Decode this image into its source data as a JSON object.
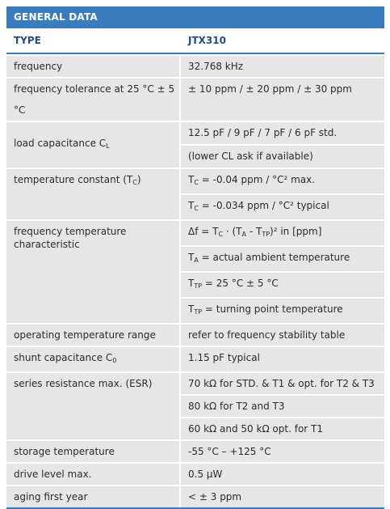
{
  "title": "GENERAL DATA",
  "header": {
    "label": "TYPE",
    "value": "JTX310"
  },
  "rows": {
    "frequency": {
      "label": "frequency",
      "value": "32.768 kHz"
    },
    "tolerance": {
      "label": "frequency tolerance at 25 °C ± 5 °C",
      "value": "± 10 ppm / ± 20 ppm / ± 30 ppm"
    },
    "load": {
      "label": "load capacitance C",
      "label_sub": "L",
      "value1": "12.5 pF / 9 pF / 7 pF / 6 pF std.",
      "value2": "(lower CL ask if available)"
    },
    "tempconst": {
      "label": "temperature constant (T",
      "label_sub": "C",
      "label_end": ")",
      "v1_pre": "T",
      "v1_sub": "C",
      "v1_post": "= -0.04 ppm / °C² max.",
      "v2_pre": "T",
      "v2_sub": "C",
      "v2_post": "= -0.034 ppm / °C² typical"
    },
    "tempchar": {
      "label": "frequency temperature characteristic",
      "v1": "Δf = T",
      "v1_sub1": "C",
      "v1_mid": "· (T",
      "v1_sub2": "A",
      "v1_mid2": "- T",
      "v1_sub3": "TP",
      "v1_end": ")² in [ppm]",
      "v2_pre": "T",
      "v2_sub": "A",
      "v2_post": "= actual ambient temperature",
      "v3_pre": "T",
      "v3_sub": "TP",
      "v3_post": "= 25 °C ± 5 °C",
      "v4_pre": "T",
      "v4_sub": "TP",
      "v4_post": "= turning point temperature"
    },
    "optemp": {
      "label": "operating temperature range",
      "value": "refer to frequency stability table"
    },
    "shunt": {
      "label": "shunt capacitance C",
      "label_sub": "0",
      "value": "1.15 pF typical"
    },
    "esr": {
      "label": "series resistance max. (ESR)",
      "value1": "70 kΩ for STD. & T1 & opt. for T2 & T3",
      "value2": "80 kΩ for T2 and T3",
      "value3": "60 kΩ and 50 kΩ opt. for T1"
    },
    "storage": {
      "label": "storage temperature",
      "value": "-55 °C – +125 °C"
    },
    "drive": {
      "label": "drive level max.",
      "value": "0.5 µW"
    },
    "aging": {
      "label": "aging first year",
      "value": "< ± 3 ppm"
    }
  }
}
